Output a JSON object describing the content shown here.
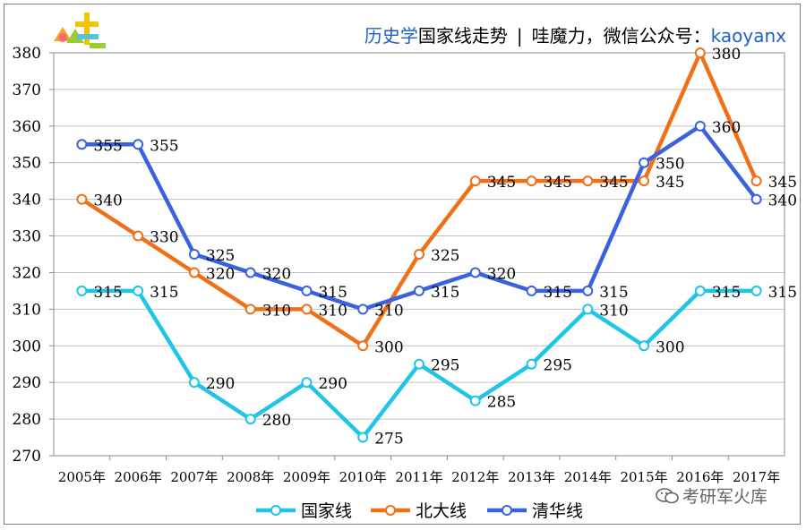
{
  "header": {
    "subject": "历史学",
    "title_rest": "国家线走势",
    "separator": "|",
    "promo": "哇魔力，微信公众号：",
    "account": "kaoyanx"
  },
  "watermark": {
    "text": "考研军火库"
  },
  "colors": {
    "guojia": "#1fc5e6",
    "beida": "#f07018",
    "qinghua": "#3a62de"
  },
  "chart_data": {
    "type": "line",
    "title": "历史学国家线走势",
    "xlabel": "",
    "ylabel": "",
    "ylim": [
      270,
      380
    ],
    "yticks": [
      270,
      280,
      290,
      300,
      310,
      320,
      330,
      340,
      350,
      360,
      370,
      380
    ],
    "grid": true,
    "legend_position": "bottom",
    "categories": [
      "2005年",
      "2006年",
      "2007年",
      "2008年",
      "2009年",
      "2010年",
      "2011年",
      "2012年",
      "2013年",
      "2014年",
      "2015年",
      "2016年",
      "2017年"
    ],
    "series": [
      {
        "name": "国家线",
        "color": "#1fc5e6",
        "values": [
          315,
          315,
          290,
          280,
          290,
          275,
          295,
          285,
          295,
          310,
          300,
          315,
          315
        ]
      },
      {
        "name": "北大线",
        "color": "#f07018",
        "values": [
          340,
          330,
          320,
          310,
          310,
          300,
          325,
          345,
          345,
          345,
          345,
          380,
          345
        ]
      },
      {
        "name": "清华线",
        "color": "#3a62de",
        "values": [
          355,
          355,
          325,
          320,
          315,
          310,
          315,
          320,
          315,
          315,
          350,
          360,
          340
        ]
      }
    ]
  }
}
